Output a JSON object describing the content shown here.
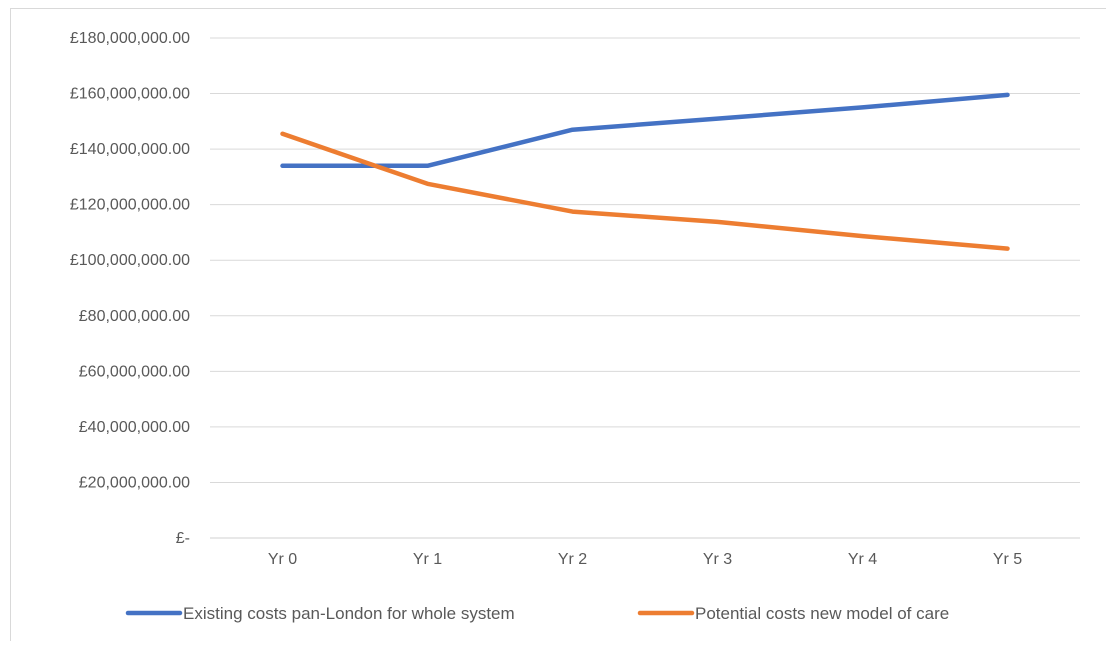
{
  "chart_data": {
    "type": "line",
    "categories": [
      "Yr 0",
      "Yr 1",
      "Yr 2",
      "Yr 3",
      "Yr 4",
      "Yr 5"
    ],
    "ylim": [
      0,
      180000000
    ],
    "yticks": [
      0,
      20000000,
      40000000,
      60000000,
      80000000,
      100000000,
      120000000,
      140000000,
      160000000,
      180000000
    ],
    "ytick_labels": [
      "£-",
      "£20,000,000.00",
      "£40,000,000.00",
      "£60,000,000.00",
      "£80,000,000.00",
      "£100,000,000.00",
      "£120,000,000.00",
      "£140,000,000.00",
      "£160,000,000.00",
      "£180,000,000.00"
    ],
    "grid": true,
    "legend_position": "bottom",
    "series": [
      {
        "name": "Existing costs pan-London for whole system",
        "color": "#4472C4",
        "values": [
          134000000,
          134000000,
          147000000,
          151000000,
          155000000,
          159500000
        ]
      },
      {
        "name": "Potential costs new model of care",
        "color": "#ED7D31",
        "values": [
          145500000,
          127500000,
          117500000,
          113800000,
          108700000,
          104200000
        ]
      }
    ]
  }
}
